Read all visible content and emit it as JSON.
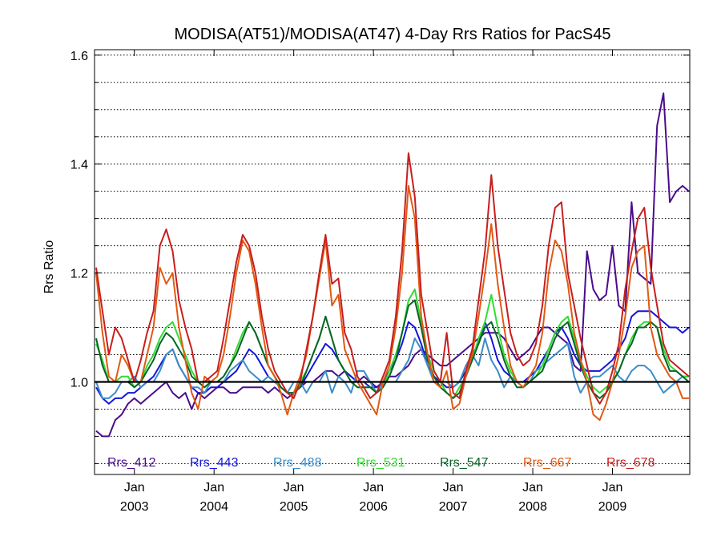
{
  "chart_data": {
    "type": "line",
    "title": "MODISA(AT51)/MODISA(AT47) 4-Day Rrs Ratios for PacS45",
    "xlabel": "",
    "ylabel": "Rrs Ratio",
    "x_tick_labels": [
      {
        "month": "Jan",
        "year": "2003"
      },
      {
        "month": "Jan",
        "year": "2004"
      },
      {
        "month": "Jan",
        "year": "2005"
      },
      {
        "month": "Jan",
        "year": "2006"
      },
      {
        "month": "Jan",
        "year": "2007"
      },
      {
        "month": "Jan",
        "year": "2008"
      },
      {
        "month": "Jan",
        "year": "2009"
      }
    ],
    "y_ticks": [
      "1.0",
      "1.2",
      "1.4",
      "1.6"
    ],
    "ylim": [
      0.83,
      1.61
    ],
    "xlim": [
      "2002-07",
      "2009-12"
    ],
    "grid": "horizontal dotted",
    "reference_line": 1.0,
    "legend_position": "bottom inside plot",
    "x": [
      2002.52,
      2002.6,
      2002.68,
      2002.76,
      2002.84,
      2002.92,
      2003.0,
      2003.08,
      2003.16,
      2003.24,
      2003.32,
      2003.4,
      2003.48,
      2003.56,
      2003.64,
      2003.72,
      2003.8,
      2003.88,
      2003.96,
      2004.04,
      2004.12,
      2004.2,
      2004.28,
      2004.36,
      2004.44,
      2004.52,
      2004.6,
      2004.68,
      2004.76,
      2004.84,
      2004.92,
      2005.0,
      2005.08,
      2005.16,
      2005.24,
      2005.32,
      2005.4,
      2005.48,
      2005.56,
      2005.64,
      2005.72,
      2005.8,
      2005.88,
      2005.96,
      2006.04,
      2006.12,
      2006.2,
      2006.28,
      2006.36,
      2006.44,
      2006.52,
      2006.6,
      2006.68,
      2006.76,
      2006.84,
      2006.92,
      2007.0,
      2007.08,
      2007.16,
      2007.24,
      2007.32,
      2007.4,
      2007.48,
      2007.56,
      2007.64,
      2007.72,
      2007.8,
      2007.88,
      2007.96,
      2008.04,
      2008.12,
      2008.2,
      2008.28,
      2008.36,
      2008.44,
      2008.52,
      2008.6,
      2008.68,
      2008.76,
      2008.84,
      2008.92,
      2009.0,
      2009.08,
      2009.16,
      2009.24,
      2009.32,
      2009.4,
      2009.48,
      2009.56,
      2009.64,
      2009.72,
      2009.8,
      2009.88,
      2009.96
    ],
    "series": [
      {
        "name": "Rrs_412",
        "color": "#4b0c8c",
        "values": [
          0.91,
          0.9,
          0.9,
          0.93,
          0.94,
          0.96,
          0.97,
          0.96,
          0.97,
          0.98,
          0.99,
          1.0,
          0.98,
          0.97,
          0.98,
          0.95,
          0.98,
          0.97,
          0.98,
          0.99,
          0.99,
          0.98,
          0.98,
          0.99,
          0.99,
          0.99,
          0.99,
          0.98,
          0.99,
          0.98,
          0.97,
          0.98,
          0.99,
          1.0,
          1.0,
          1.01,
          1.02,
          1.02,
          1.01,
          1.02,
          1.01,
          1.0,
          1.01,
          1.0,
          0.99,
          1.0,
          1.01,
          1.01,
          1.02,
          1.03,
          1.05,
          1.06,
          1.05,
          1.04,
          1.03,
          1.03,
          1.04,
          1.05,
          1.06,
          1.07,
          1.08,
          1.09,
          1.09,
          1.09,
          1.08,
          1.06,
          1.04,
          1.05,
          1.06,
          1.08,
          1.1,
          1.1,
          1.09,
          1.08,
          1.07,
          1.03,
          1.02,
          1.24,
          1.17,
          1.15,
          1.16,
          1.25,
          1.14,
          1.13,
          1.33,
          1.2,
          1.19,
          1.18,
          1.47,
          1.53,
          1.33,
          1.35,
          1.36,
          1.35
        ]
      },
      {
        "name": "Rrs_443",
        "color": "#1414dc",
        "values": [
          0.99,
          0.97,
          0.96,
          0.97,
          0.97,
          0.98,
          0.98,
          0.99,
          1.0,
          1.01,
          1.03,
          1.05,
          1.06,
          1.03,
          1.01,
          0.99,
          0.98,
          0.98,
          0.99,
          0.99,
          1.0,
          1.01,
          1.02,
          1.04,
          1.06,
          1.05,
          1.03,
          1.01,
          1.0,
          0.99,
          0.98,
          0.98,
          0.99,
          1.01,
          1.03,
          1.05,
          1.07,
          1.06,
          1.04,
          1.02,
          1.01,
          1.0,
          1.0,
          0.99,
          0.99,
          1.0,
          1.02,
          1.04,
          1.07,
          1.11,
          1.1,
          1.07,
          1.03,
          1.01,
          1.0,
          0.99,
          0.99,
          1.0,
          1.02,
          1.05,
          1.07,
          1.11,
          1.08,
          1.04,
          1.02,
          1.01,
          1.0,
          1.0,
          1.01,
          1.02,
          1.04,
          1.06,
          1.09,
          1.1,
          1.08,
          1.05,
          1.03,
          1.02,
          1.02,
          1.02,
          1.03,
          1.04,
          1.06,
          1.08,
          1.12,
          1.13,
          1.13,
          1.13,
          1.12,
          1.11,
          1.1,
          1.1,
          1.09,
          1.1
        ]
      },
      {
        "name": "Rrs_488",
        "color": "#3c8cc8",
        "values": [
          1.0,
          0.97,
          0.97,
          0.98,
          1.0,
          1.0,
          1.01,
          0.99,
          1.0,
          1.0,
          1.02,
          1.05,
          1.06,
          1.03,
          1.01,
          0.99,
          0.99,
          0.98,
          1.0,
          1.0,
          1.0,
          1.02,
          1.03,
          1.04,
          1.02,
          1.01,
          1.0,
          1.01,
          1.0,
          0.99,
          0.98,
          1.0,
          1.0,
          0.98,
          1.0,
          1.0,
          1.02,
          0.98,
          1.01,
          1.0,
          0.98,
          1.02,
          1.02,
          1.0,
          0.98,
          1.0,
          1.0,
          1.0,
          1.02,
          1.04,
          1.08,
          1.06,
          1.03,
          1.0,
          1.0,
          1.0,
          0.99,
          1.0,
          1.03,
          1.05,
          1.03,
          1.08,
          1.04,
          1.02,
          0.99,
          1.01,
          1.0,
          1.0,
          1.0,
          1.02,
          1.03,
          1.04,
          1.05,
          1.06,
          1.07,
          1.01,
          0.98,
          1.0,
          1.01,
          1.01,
          1.02,
          1.03,
          1.01,
          1.0,
          1.02,
          1.03,
          1.03,
          1.02,
          1.0,
          0.98,
          0.99,
          1.0,
          1.01,
          1.01
        ]
      },
      {
        "name": "Rrs_531",
        "color": "#32dc32",
        "values": [
          1.07,
          1.04,
          1.0,
          1.0,
          1.01,
          1.01,
          0.99,
          1.0,
          1.03,
          1.05,
          1.08,
          1.1,
          1.11,
          1.08,
          1.05,
          1.02,
          1.0,
          0.99,
          1.0,
          1.0,
          1.01,
          1.03,
          1.06,
          1.09,
          1.11,
          1.09,
          1.06,
          1.03,
          1.01,
          0.99,
          0.98,
          0.98,
          1.0,
          1.02,
          1.05,
          1.08,
          1.12,
          1.08,
          1.04,
          1.02,
          1.0,
          0.99,
          0.99,
          0.99,
          0.98,
          0.99,
          1.02,
          1.05,
          1.09,
          1.15,
          1.17,
          1.11,
          1.05,
          1.02,
          1.0,
          0.98,
          0.97,
          0.99,
          1.01,
          1.04,
          1.08,
          1.11,
          1.16,
          1.1,
          1.05,
          1.02,
          1.0,
          0.99,
          1.0,
          1.01,
          1.03,
          1.06,
          1.09,
          1.11,
          1.12,
          1.08,
          1.04,
          1.01,
          0.99,
          0.98,
          0.99,
          1.0,
          1.02,
          1.05,
          1.08,
          1.1,
          1.11,
          1.11,
          1.1,
          1.06,
          1.03,
          1.02,
          1.01,
          1.01
        ]
      },
      {
        "name": "Rrs_547",
        "color": "#0a6428",
        "values": [
          1.08,
          1.03,
          1.0,
          1.0,
          1.0,
          1.0,
          0.99,
          1.0,
          1.02,
          1.04,
          1.07,
          1.09,
          1.08,
          1.06,
          1.04,
          1.01,
          1.0,
          0.99,
          1.0,
          1.0,
          1.01,
          1.03,
          1.05,
          1.08,
          1.11,
          1.09,
          1.06,
          1.03,
          1.01,
          0.99,
          0.98,
          0.98,
          0.99,
          1.02,
          1.05,
          1.08,
          1.12,
          1.08,
          1.04,
          1.02,
          1.0,
          0.99,
          0.99,
          0.99,
          0.98,
          0.99,
          1.01,
          1.04,
          1.09,
          1.14,
          1.15,
          1.1,
          1.04,
          1.01,
          0.99,
          0.98,
          0.97,
          0.98,
          1.01,
          1.04,
          1.07,
          1.1,
          1.11,
          1.08,
          1.04,
          1.01,
          0.99,
          0.99,
          1.0,
          1.01,
          1.02,
          1.05,
          1.08,
          1.1,
          1.11,
          1.07,
          1.03,
          1.0,
          0.98,
          0.97,
          0.98,
          1.0,
          1.02,
          1.05,
          1.07,
          1.1,
          1.1,
          1.11,
          1.1,
          1.05,
          1.02,
          1.02,
          1.01,
          1.0
        ]
      },
      {
        "name": "Rrs_667",
        "color": "#e05a14",
        "values": [
          1.2,
          1.09,
          1.01,
          1.0,
          1.05,
          1.03,
          1.0,
          1.0,
          1.05,
          1.1,
          1.21,
          1.18,
          1.2,
          1.1,
          1.04,
          0.98,
          0.95,
          1.01,
          1.0,
          1.01,
          1.05,
          1.12,
          1.2,
          1.26,
          1.24,
          1.18,
          1.1,
          1.03,
          1.01,
          0.98,
          0.94,
          0.98,
          1.01,
          1.05,
          1.12,
          1.19,
          1.26,
          1.14,
          1.16,
          1.06,
          1.03,
          1.0,
          0.98,
          0.96,
          0.94,
          1.0,
          1.03,
          1.1,
          1.2,
          1.36,
          1.3,
          1.12,
          1.05,
          1.0,
          0.99,
          1.02,
          0.95,
          0.96,
          1.01,
          1.05,
          1.12,
          1.2,
          1.29,
          1.18,
          1.1,
          1.03,
          1.0,
          0.99,
          1.01,
          1.03,
          1.09,
          1.2,
          1.26,
          1.24,
          1.18,
          1.09,
          1.04,
          1.0,
          0.94,
          0.93,
          0.96,
          1.0,
          1.05,
          1.12,
          1.21,
          1.24,
          1.25,
          1.1,
          1.05,
          1.03,
          1.01,
          1.0,
          0.97,
          0.97
        ]
      },
      {
        "name": "Rrs_678",
        "color": "#c81e1e",
        "values": [
          1.21,
          1.13,
          1.05,
          1.1,
          1.08,
          1.04,
          1.0,
          1.04,
          1.09,
          1.13,
          1.25,
          1.28,
          1.24,
          1.15,
          1.1,
          1.06,
          1.0,
          1.0,
          1.01,
          1.02,
          1.08,
          1.15,
          1.22,
          1.27,
          1.25,
          1.2,
          1.12,
          1.06,
          1.02,
          1.0,
          0.98,
          0.97,
          1.0,
          1.06,
          1.12,
          1.2,
          1.27,
          1.18,
          1.19,
          1.09,
          1.06,
          1.01,
          0.99,
          0.97,
          0.98,
          1.01,
          1.04,
          1.12,
          1.24,
          1.42,
          1.34,
          1.16,
          1.09,
          1.02,
          1.0,
          1.09,
          0.98,
          0.97,
          1.02,
          1.06,
          1.15,
          1.24,
          1.38,
          1.25,
          1.17,
          1.09,
          1.05,
          1.03,
          1.04,
          1.07,
          1.14,
          1.25,
          1.32,
          1.33,
          1.2,
          1.14,
          1.08,
          1.03,
          0.98,
          0.96,
          0.98,
          1.02,
          1.07,
          1.17,
          1.24,
          1.3,
          1.32,
          1.21,
          1.14,
          1.07,
          1.04,
          1.03,
          1.02,
          1.01
        ]
      }
    ]
  }
}
